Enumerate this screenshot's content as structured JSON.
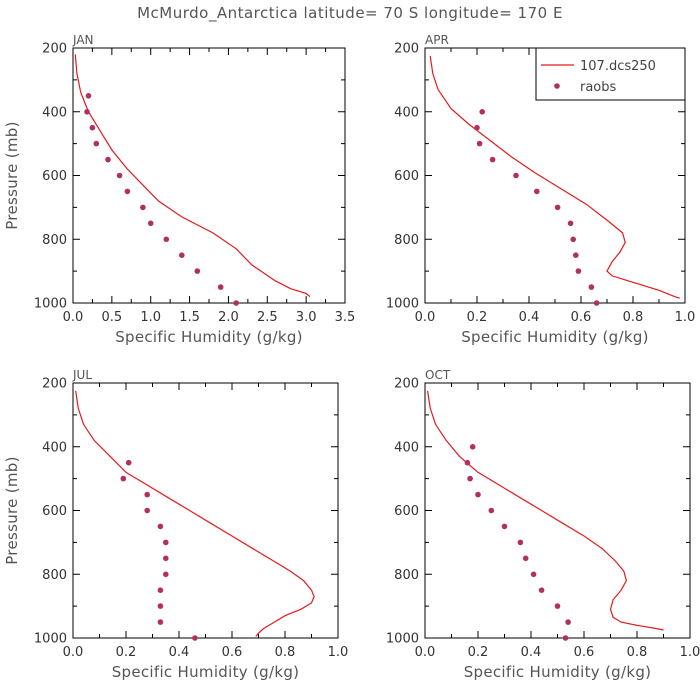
{
  "title": "McMurdo_Antarctica  latitude= 70 S longitude= 170 E",
  "legend": {
    "model_label": "107.dcs250",
    "obs_label": "raobs"
  },
  "colors": {
    "model": "#e31a1c",
    "obs": "#b03060"
  },
  "chart_data": [
    {
      "type": "line",
      "panel": "JAN",
      "xlabel": "Specific Humidity (g/kg)",
      "ylabel": "Pressure (mb)",
      "xlim": [
        0,
        3.5
      ],
      "ylim": [
        1000,
        200
      ],
      "xticks": [
        "0.0",
        "0.5",
        "1.0",
        "1.5",
        "2.0",
        "2.5",
        "3.0",
        "3.5"
      ],
      "yticks": [
        "200",
        "400",
        "600",
        "800",
        "1000"
      ],
      "series": [
        {
          "name": "107.dcs250",
          "kind": "line",
          "x": [
            0.03,
            0.05,
            0.1,
            0.2,
            0.35,
            0.5,
            0.7,
            0.9,
            1.1,
            1.4,
            1.8,
            2.1,
            2.3,
            2.6,
            2.8,
            3.0,
            3.05
          ],
          "y": [
            220,
            280,
            340,
            400,
            460,
            520,
            580,
            630,
            680,
            730,
            780,
            830,
            880,
            930,
            955,
            970,
            980
          ]
        },
        {
          "name": "raobs",
          "kind": "points",
          "x": [
            0.2,
            0.18,
            0.25,
            0.3,
            0.45,
            0.6,
            0.7,
            0.9,
            1.0,
            1.2,
            1.4,
            1.6,
            1.9,
            2.1
          ],
          "y": [
            350,
            400,
            450,
            500,
            550,
            600,
            650,
            700,
            750,
            800,
            850,
            900,
            950,
            1000
          ]
        }
      ]
    },
    {
      "type": "line",
      "panel": "APR",
      "xlabel": "Specific Humidity (g/kg)",
      "ylabel": "",
      "xlim": [
        0,
        1.0
      ],
      "ylim": [
        1000,
        200
      ],
      "xticks": [
        "0.0",
        "0.2",
        "0.4",
        "0.6",
        "0.8",
        "1.0"
      ],
      "yticks": [
        "200",
        "400",
        "600",
        "800",
        "1000"
      ],
      "legend_position": "top-right",
      "series": [
        {
          "name": "107.dcs250",
          "kind": "line",
          "x": [
            0.02,
            0.03,
            0.05,
            0.1,
            0.17,
            0.25,
            0.33,
            0.42,
            0.52,
            0.62,
            0.7,
            0.76,
            0.77,
            0.75,
            0.72,
            0.7,
            0.72,
            0.8,
            0.9,
            0.96,
            0.98
          ],
          "y": [
            225,
            280,
            330,
            390,
            440,
            490,
            540,
            590,
            640,
            690,
            740,
            780,
            810,
            840,
            870,
            900,
            915,
            935,
            960,
            980,
            985
          ]
        },
        {
          "name": "raobs",
          "kind": "points",
          "x": [
            0.22,
            0.2,
            0.21,
            0.26,
            0.35,
            0.43,
            0.51,
            0.56,
            0.57,
            0.58,
            0.59,
            0.64,
            0.66
          ],
          "y": [
            400,
            450,
            500,
            550,
            600,
            650,
            700,
            750,
            800,
            850,
            900,
            950,
            1000
          ]
        }
      ]
    },
    {
      "type": "line",
      "panel": "JUL",
      "xlabel": "Specific Humidity (g/kg)",
      "ylabel": "Pressure (mb)",
      "xlim": [
        0,
        1.0
      ],
      "ylim": [
        1000,
        200
      ],
      "xticks": [
        "0.0",
        "0.2",
        "0.4",
        "0.6",
        "0.8",
        "1.0"
      ],
      "yticks": [
        "200",
        "400",
        "600",
        "800",
        "1000"
      ],
      "series": [
        {
          "name": "107.dcs250",
          "kind": "line",
          "x": [
            0.01,
            0.02,
            0.04,
            0.08,
            0.14,
            0.2,
            0.28,
            0.36,
            0.44,
            0.52,
            0.6,
            0.68,
            0.76,
            0.82,
            0.87,
            0.9,
            0.91,
            0.9,
            0.86,
            0.8,
            0.76,
            0.72,
            0.7,
            0.69
          ],
          "y": [
            225,
            280,
            330,
            380,
            430,
            480,
            520,
            560,
            600,
            640,
            680,
            720,
            760,
            790,
            820,
            850,
            870,
            890,
            910,
            930,
            950,
            970,
            985,
            995
          ]
        },
        {
          "name": "raobs",
          "kind": "points",
          "x": [
            0.21,
            0.19,
            0.28,
            0.28,
            0.33,
            0.35,
            0.35,
            0.35,
            0.33,
            0.33,
            0.33,
            0.46
          ],
          "y": [
            450,
            500,
            550,
            600,
            650,
            700,
            750,
            800,
            850,
            900,
            950,
            1000
          ]
        }
      ]
    },
    {
      "type": "line",
      "panel": "OCT",
      "xlabel": "Specific Humidity (g/kg)",
      "ylabel": "",
      "xlim": [
        0,
        1.0
      ],
      "ylim": [
        1000,
        200
      ],
      "xticks": [
        "0.0",
        "0.2",
        "0.4",
        "0.6",
        "0.8",
        "1.0"
      ],
      "yticks": [
        "200",
        "400",
        "600",
        "800",
        "1000"
      ],
      "series": [
        {
          "name": "107.dcs250",
          "kind": "line",
          "x": [
            0.01,
            0.02,
            0.04,
            0.08,
            0.13,
            0.2,
            0.28,
            0.36,
            0.44,
            0.52,
            0.6,
            0.67,
            0.72,
            0.75,
            0.76,
            0.74,
            0.71,
            0.7,
            0.71,
            0.74,
            0.8,
            0.87,
            0.9
          ],
          "y": [
            225,
            280,
            330,
            380,
            430,
            480,
            520,
            560,
            600,
            640,
            680,
            720,
            760,
            790,
            820,
            850,
            880,
            910,
            935,
            950,
            960,
            970,
            975
          ]
        },
        {
          "name": "raobs",
          "kind": "points",
          "x": [
            0.18,
            0.16,
            0.17,
            0.2,
            0.25,
            0.3,
            0.36,
            0.38,
            0.41,
            0.44,
            0.5,
            0.54,
            0.53
          ],
          "y": [
            400,
            450,
            500,
            550,
            600,
            650,
            700,
            750,
            800,
            850,
            900,
            950,
            1000
          ]
        }
      ]
    }
  ]
}
